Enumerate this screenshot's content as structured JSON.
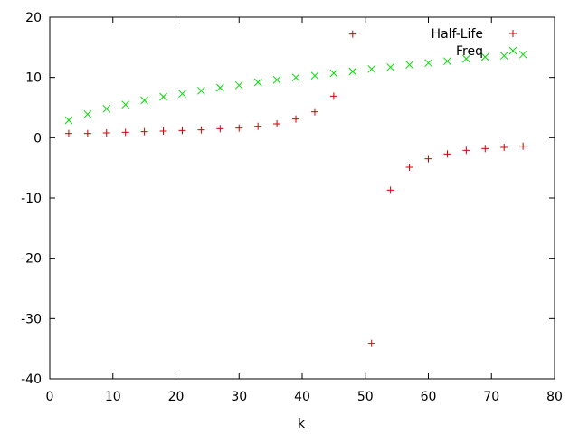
{
  "chart_data": {
    "type": "scatter",
    "title": "",
    "xlabel": "k",
    "ylabel": "",
    "xlim": [
      0,
      80
    ],
    "ylim": [
      -40,
      20
    ],
    "x_ticks": [
      0,
      10,
      20,
      30,
      40,
      50,
      60,
      70,
      80
    ],
    "y_ticks": [
      -40,
      -30,
      -20,
      -10,
      0,
      10,
      20
    ],
    "grid": false,
    "legend_position": "top-right",
    "series": [
      {
        "name": "Half-Life",
        "marker": "plus",
        "color": "#cc0000",
        "x": [
          3,
          6,
          9,
          12,
          15,
          18,
          21,
          24,
          27,
          30,
          33,
          36,
          39,
          42,
          45,
          48,
          51,
          54,
          57,
          60,
          63,
          66,
          69,
          72,
          75
        ],
        "y": [
          0.7,
          0.7,
          0.8,
          0.9,
          1.0,
          1.1,
          1.2,
          1.3,
          1.5,
          1.6,
          1.9,
          2.3,
          3.1,
          4.3,
          6.9,
          17.2,
          -34.1,
          -8.7,
          -4.9,
          -3.5,
          -2.7,
          -2.1,
          -1.8,
          -1.6,
          -1.4
        ]
      },
      {
        "name": "Freq",
        "marker": "cross",
        "color": "#00dd00",
        "x": [
          3,
          6,
          9,
          12,
          15,
          18,
          21,
          24,
          27,
          30,
          33,
          36,
          39,
          42,
          45,
          48,
          51,
          54,
          57,
          60,
          63,
          66,
          69,
          72,
          75
        ],
        "y": [
          2.9,
          3.9,
          4.8,
          5.5,
          6.2,
          6.8,
          7.3,
          7.8,
          8.3,
          8.7,
          9.2,
          9.6,
          10.0,
          10.3,
          10.7,
          11.0,
          11.4,
          11.7,
          12.1,
          12.4,
          12.7,
          13.1,
          13.4,
          13.6,
          13.8
        ]
      }
    ]
  }
}
